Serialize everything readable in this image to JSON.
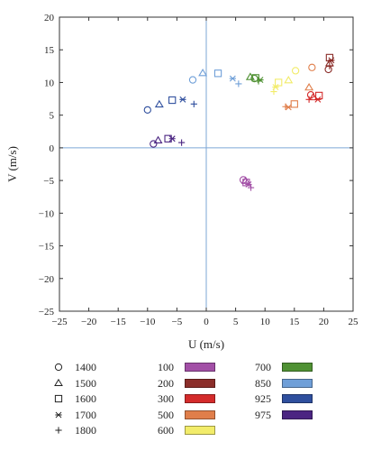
{
  "chart_data": {
    "type": "scatter",
    "xlabel": "U (m/s)",
    "ylabel": "V (m/s)",
    "xlim": [
      -25,
      25
    ],
    "ylim": [
      -25,
      20
    ],
    "xticks": [
      "−25",
      "−20",
      "−15",
      "−10",
      "−5",
      "0",
      "5",
      "10",
      "15",
      "20",
      "25"
    ],
    "yticks": [
      "20",
      "15",
      "10",
      "5",
      "0",
      "−5",
      "−10",
      "−15",
      "−20",
      "−25"
    ],
    "grid": false,
    "time_legend": [
      {
        "label": "1400",
        "marker": "circle"
      },
      {
        "label": "1500",
        "marker": "triangle"
      },
      {
        "label": "1600",
        "marker": "square"
      },
      {
        "label": "1700",
        "marker": "asterisk"
      },
      {
        "label": "1800",
        "marker": "plus"
      }
    ],
    "level_legend": [
      {
        "label": "100",
        "color": "#a24fa6"
      },
      {
        "label": "200",
        "color": "#8b2e2a"
      },
      {
        "label": "300",
        "color": "#d42b2b"
      },
      {
        "label": "500",
        "color": "#e07e4a"
      },
      {
        "label": "600",
        "color": "#f2ec6a"
      },
      {
        "label": "700",
        "color": "#4f9133"
      },
      {
        "label": "850",
        "color": "#6f9fd8"
      },
      {
        "label": "925",
        "color": "#2f4f9e"
      },
      {
        "label": "975",
        "color": "#4b2582"
      }
    ],
    "series": [
      {
        "level": "975",
        "color": "#4b2582",
        "points": [
          [
            -9,
            0.6
          ],
          [
            -8.2,
            1.1
          ],
          [
            -6.5,
            1.4
          ],
          [
            -5.8,
            1.4
          ],
          [
            -4.2,
            0.8
          ]
        ]
      },
      {
        "level": "925",
        "color": "#2f4f9e",
        "points": [
          [
            -10,
            5.8
          ],
          [
            -8,
            6.6
          ],
          [
            -5.8,
            7.3
          ],
          [
            -4,
            7.4
          ],
          [
            -2.1,
            6.7
          ]
        ]
      },
      {
        "level": "850",
        "color": "#6f9fd8",
        "points": [
          [
            -2.3,
            10.4
          ],
          [
            -0.6,
            11.4
          ],
          [
            2,
            11.4
          ],
          [
            4.5,
            10.6
          ],
          [
            5.5,
            9.8
          ]
        ]
      },
      {
        "level": "700",
        "color": "#4f9133",
        "points": [
          [
            8.2,
            10.6
          ],
          [
            7.5,
            10.8
          ],
          [
            8.4,
            10.7
          ],
          [
            9.2,
            10.4
          ],
          [
            8.9,
            10.2
          ]
        ]
      },
      {
        "level": "600",
        "color": "#f2ec6a",
        "points": [
          [
            15.2,
            11.8
          ],
          [
            14,
            10.3
          ],
          [
            12.3,
            10
          ],
          [
            11.8,
            9.3
          ],
          [
            11.5,
            8.6
          ]
        ]
      },
      {
        "level": "500",
        "color": "#e07e4a",
        "points": [
          [
            18,
            12.3
          ],
          [
            17.5,
            9.2
          ],
          [
            15,
            6.7
          ],
          [
            14,
            6.2
          ],
          [
            13.5,
            6.3
          ]
        ]
      },
      {
        "level": "300",
        "color": "#d42b2b",
        "points": [
          [
            17.8,
            8.1
          ],
          [
            18.2,
            7.7
          ],
          [
            19.2,
            8
          ],
          [
            19,
            7.4
          ],
          [
            17.5,
            7.4
          ]
        ]
      },
      {
        "level": "200",
        "color": "#8b2e2a",
        "points": [
          [
            20.8,
            12
          ],
          [
            21,
            12.9
          ],
          [
            21,
            13.8
          ],
          [
            21.3,
            13.4
          ],
          [
            21,
            12.5
          ]
        ]
      },
      {
        "level": "100",
        "color": "#a24fa6",
        "points": [
          [
            6.3,
            -4.9
          ],
          [
            6.7,
            -5.1
          ],
          [
            6.8,
            -5.3
          ],
          [
            7.2,
            -5.6
          ],
          [
            7.6,
            -6.1
          ]
        ]
      }
    ]
  }
}
